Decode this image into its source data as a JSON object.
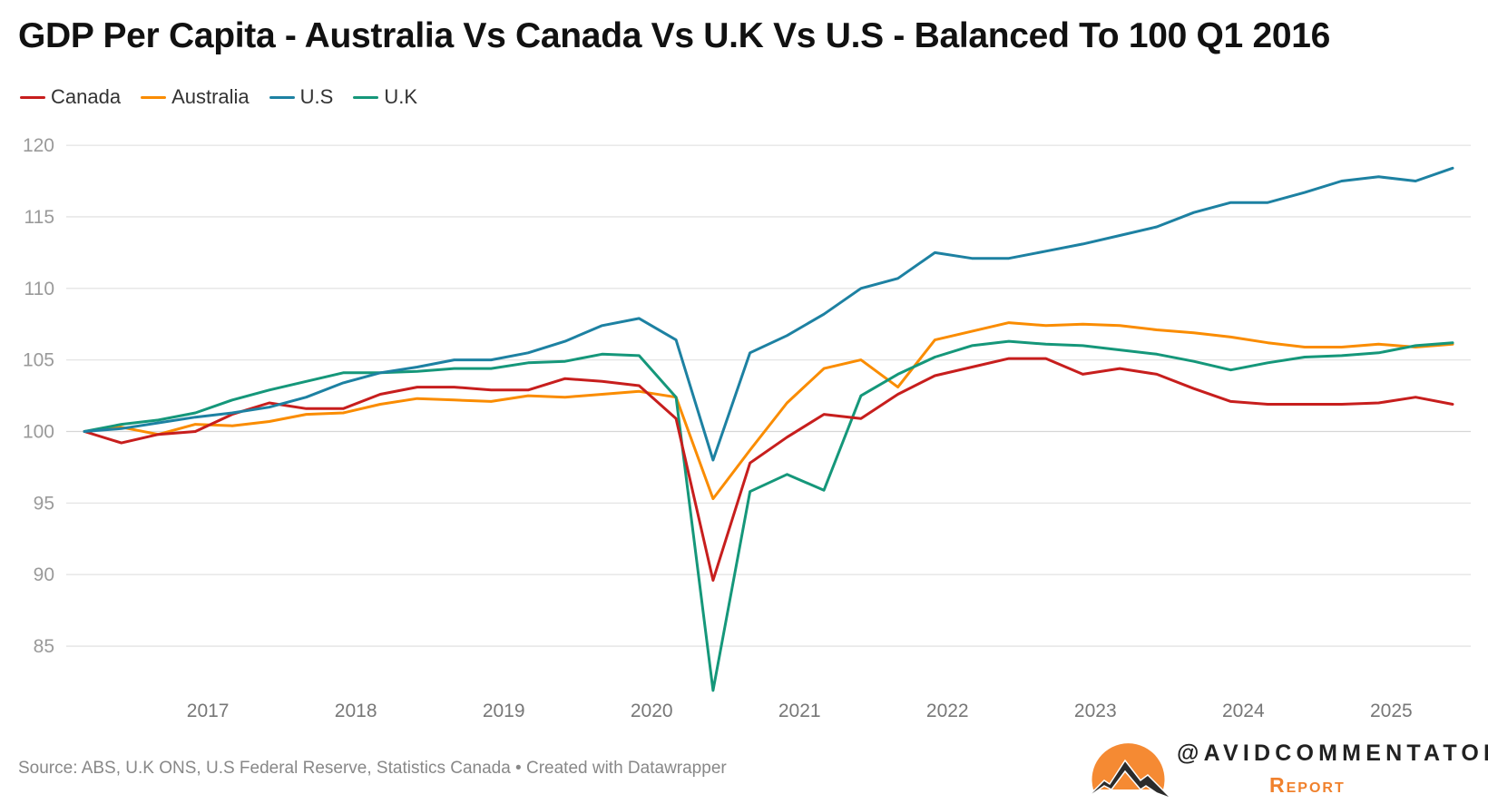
{
  "chart_data": {
    "type": "line",
    "title": "GDP Per Capita - Australia Vs Canada Vs U.K Vs U.S - Balanced To 100 Q1 2016",
    "xlabel": "",
    "ylabel": "",
    "x": [
      "2016 Q1",
      "2016 Q2",
      "2016 Q3",
      "2016 Q4",
      "2017 Q1",
      "2017 Q2",
      "2017 Q3",
      "2017 Q4",
      "2018 Q1",
      "2018 Q2",
      "2018 Q3",
      "2018 Q4",
      "2019 Q1",
      "2019 Q2",
      "2019 Q3",
      "2019 Q4",
      "2020 Q1",
      "2020 Q2",
      "2020 Q3",
      "2020 Q4",
      "2021 Q1",
      "2021 Q2",
      "2021 Q3",
      "2021 Q4",
      "2022 Q1",
      "2022 Q2",
      "2022 Q3",
      "2022 Q4",
      "2023 Q1",
      "2023 Q2",
      "2023 Q3",
      "2023 Q4",
      "2024 Q1",
      "2024 Q2",
      "2024 Q3",
      "2024 Q4",
      "2025 Q1",
      "2025 Q2"
    ],
    "x_tick_labels": [
      "2017",
      "2018",
      "2019",
      "2020",
      "2021",
      "2022",
      "2023",
      "2024",
      "2025"
    ],
    "y_ticks": [
      85,
      90,
      95,
      100,
      105,
      110,
      115,
      120
    ],
    "ylim": [
      81.5,
      120
    ],
    "grid": true,
    "legend_placement": "top-left",
    "series": [
      {
        "name": "Canada",
        "color": "#c71e1d",
        "values": [
          100,
          99.2,
          99.8,
          100.0,
          101.2,
          102.0,
          101.6,
          101.6,
          102.6,
          103.1,
          103.1,
          102.9,
          102.9,
          103.7,
          103.5,
          103.2,
          100.9,
          89.6,
          97.8,
          99.6,
          101.2,
          100.9,
          102.6,
          103.9,
          104.5,
          105.1,
          105.1,
          104.0,
          104.4,
          104.0,
          103.0,
          102.1,
          101.9,
          101.9,
          101.9,
          102.0,
          102.4,
          101.9
        ]
      },
      {
        "name": "Australia",
        "color": "#fa8c00",
        "values": [
          100,
          100.3,
          99.8,
          100.5,
          100.4,
          100.7,
          101.2,
          101.3,
          101.9,
          102.3,
          102.2,
          102.1,
          102.5,
          102.4,
          102.6,
          102.8,
          102.4,
          95.3,
          98.7,
          102.0,
          104.4,
          105.0,
          103.1,
          106.4,
          107.0,
          107.6,
          107.4,
          107.5,
          107.4,
          107.1,
          106.9,
          106.6,
          106.2,
          105.9,
          105.9,
          106.1,
          105.9,
          106.1
        ]
      },
      {
        "name": "U.S",
        "color": "#1d81a2",
        "values": [
          100,
          100.2,
          100.6,
          101.0,
          101.3,
          101.7,
          102.4,
          103.4,
          104.1,
          104.5,
          105.0,
          105.0,
          105.5,
          106.3,
          107.4,
          107.9,
          106.4,
          98.0,
          105.5,
          106.7,
          108.2,
          110.0,
          110.7,
          112.5,
          112.1,
          112.1,
          112.6,
          113.1,
          113.7,
          114.3,
          115.3,
          116.0,
          116.0,
          116.7,
          117.5,
          117.8,
          117.5,
          118.4
        ]
      },
      {
        "name": "U.K",
        "color": "#15977a",
        "values": [
          100,
          100.5,
          100.8,
          101.3,
          102.2,
          102.9,
          103.5,
          104.1,
          104.1,
          104.2,
          104.4,
          104.4,
          104.8,
          104.9,
          105.4,
          105.3,
          102.4,
          81.9,
          95.8,
          97.0,
          95.9,
          102.5,
          104.0,
          105.2,
          106.0,
          106.3,
          106.1,
          106.0,
          105.7,
          105.4,
          104.9,
          104.3,
          104.8,
          105.2,
          105.3,
          105.5,
          106.0,
          106.2
        ]
      }
    ]
  },
  "source": "Source: ABS, U.K ONS, U.S Federal Reserve, Statistics Canada • Created with Datawrapper",
  "branding": {
    "handle": "@AVIDCOMMENTATOR",
    "subtitle": "Report",
    "logo_colors": {
      "sun": "#f58a33",
      "mountain": "#2b2b2b"
    }
  }
}
